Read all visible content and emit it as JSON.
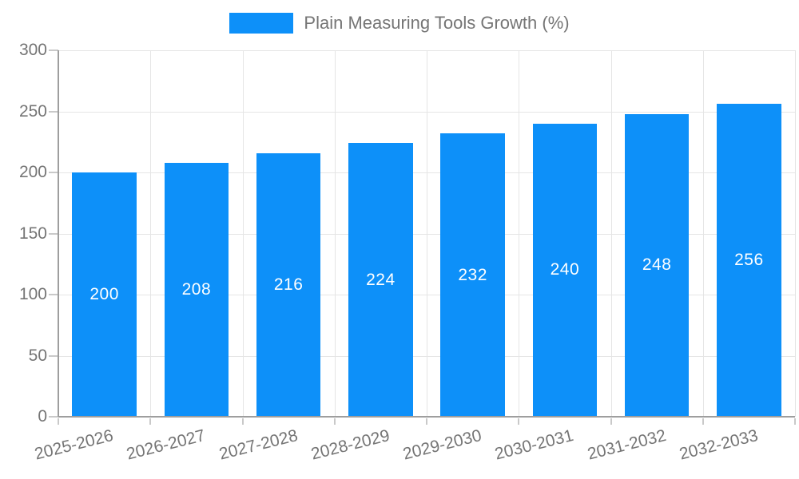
{
  "chart_data": {
    "type": "bar",
    "title": "Plain Measuring Tools Growth (%)",
    "categories": [
      "2025-2026",
      "2026-2027",
      "2027-2028",
      "2028-2029",
      "2029-2030",
      "2030-2031",
      "2031-2032",
      "2032-2033"
    ],
    "values": [
      200,
      208,
      216,
      224,
      232,
      240,
      248,
      256
    ],
    "ylim": [
      0,
      300
    ],
    "yticks": [
      0,
      50,
      100,
      150,
      200,
      250,
      300
    ],
    "grid": true,
    "legend_position": "top-center",
    "value_labels_position": "inside-center",
    "colors": {
      "bar": "#0D90F9",
      "bar_label": "#FFFFFF",
      "axis_text": "#757575",
      "axis_line": "#9E9E9E",
      "grid": "#E5E5E5",
      "tick": "#C9C9C9"
    }
  }
}
